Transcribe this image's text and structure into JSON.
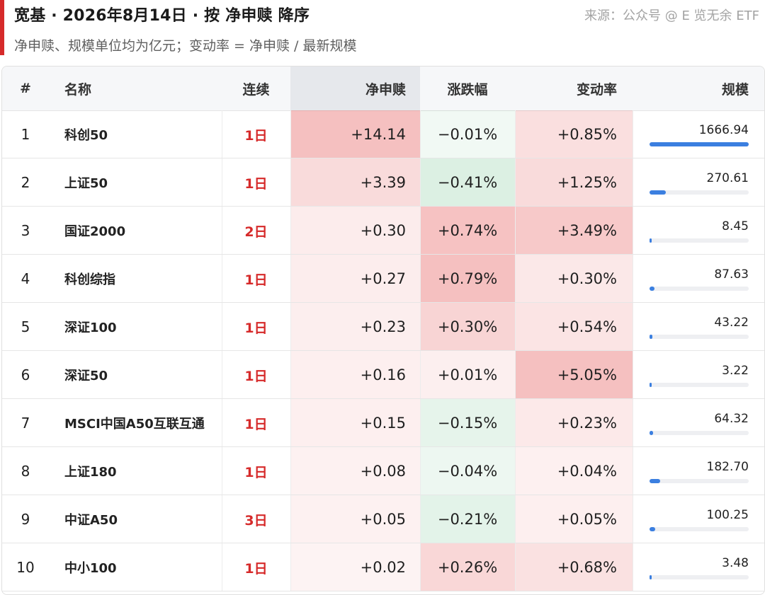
{
  "header": {
    "title": "宽基 · 2026年8月14日 · 按 净申赎 降序",
    "source": "来源：公众号 @ E 览无余 ETF",
    "subtitle": "净申赎、规模单位均为亿元；变动率 = 净申赎 / 最新规模"
  },
  "colors": {
    "accent": "#d62a2a",
    "positive_heat": "#f2b8b8",
    "negative_heat": "#d9f0e1",
    "bar": "#3b7fe0"
  },
  "table": {
    "columns": [
      "#",
      "名称",
      "连续",
      "净申赎",
      "涨跌幅",
      "变动率",
      "规模"
    ],
    "max_scale": 1666.94,
    "rows": [
      {
        "rank": "1",
        "name": "科创50",
        "streak": "1日",
        "net": "+14.14",
        "net_v": 14.14,
        "chg": "−0.01%",
        "chg_v": -0.01,
        "rate": "+0.85%",
        "rate_v": 0.85,
        "scale": "1666.94",
        "scale_v": 1666.94
      },
      {
        "rank": "2",
        "name": "上证50",
        "streak": "1日",
        "net": "+3.39",
        "net_v": 3.39,
        "chg": "−0.41%",
        "chg_v": -0.41,
        "rate": "+1.25%",
        "rate_v": 1.25,
        "scale": "270.61",
        "scale_v": 270.61
      },
      {
        "rank": "3",
        "name": "国证2000",
        "streak": "2日",
        "net": "+0.30",
        "net_v": 0.3,
        "chg": "+0.74%",
        "chg_v": 0.74,
        "rate": "+3.49%",
        "rate_v": 3.49,
        "scale": "8.45",
        "scale_v": 8.45
      },
      {
        "rank": "4",
        "name": "科创综指",
        "streak": "1日",
        "net": "+0.27",
        "net_v": 0.27,
        "chg": "+0.79%",
        "chg_v": 0.79,
        "rate": "+0.30%",
        "rate_v": 0.3,
        "scale": "87.63",
        "scale_v": 87.63
      },
      {
        "rank": "5",
        "name": "深证100",
        "streak": "1日",
        "net": "+0.23",
        "net_v": 0.23,
        "chg": "+0.30%",
        "chg_v": 0.3,
        "rate": "+0.54%",
        "rate_v": 0.54,
        "scale": "43.22",
        "scale_v": 43.22
      },
      {
        "rank": "6",
        "name": "深证50",
        "streak": "1日",
        "net": "+0.16",
        "net_v": 0.16,
        "chg": "+0.01%",
        "chg_v": 0.01,
        "rate": "+5.05%",
        "rate_v": 5.05,
        "scale": "3.22",
        "scale_v": 3.22
      },
      {
        "rank": "7",
        "name": "MSCI中国A50互联互通",
        "streak": "1日",
        "net": "+0.15",
        "net_v": 0.15,
        "chg": "−0.15%",
        "chg_v": -0.15,
        "rate": "+0.23%",
        "rate_v": 0.23,
        "scale": "64.32",
        "scale_v": 64.32
      },
      {
        "rank": "8",
        "name": "上证180",
        "streak": "1日",
        "net": "+0.08",
        "net_v": 0.08,
        "chg": "−0.04%",
        "chg_v": -0.04,
        "rate": "+0.04%",
        "rate_v": 0.04,
        "scale": "182.70",
        "scale_v": 182.7
      },
      {
        "rank": "9",
        "name": "中证A50",
        "streak": "3日",
        "net": "+0.05",
        "net_v": 0.05,
        "chg": "−0.21%",
        "chg_v": -0.21,
        "rate": "+0.05%",
        "rate_v": 0.05,
        "scale": "100.25",
        "scale_v": 100.25
      },
      {
        "rank": "10",
        "name": "中小100",
        "streak": "1日",
        "net": "+0.02",
        "net_v": 0.02,
        "chg": "+0.26%",
        "chg_v": 0.26,
        "rate": "+0.68%",
        "rate_v": 0.68,
        "scale": "3.48",
        "scale_v": 3.48
      }
    ]
  }
}
